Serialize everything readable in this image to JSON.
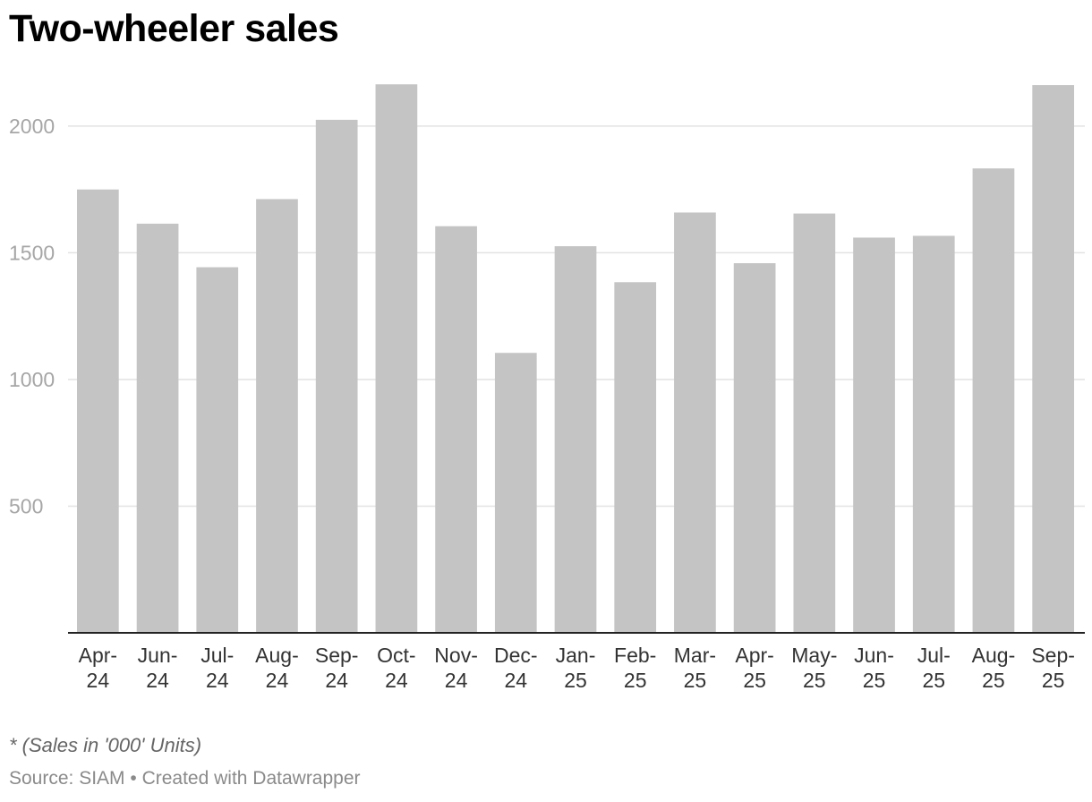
{
  "chart_data": {
    "type": "bar",
    "title": "Two-wheeler sales",
    "categories": [
      [
        "Apr-",
        "24"
      ],
      [
        "Jun-",
        "24"
      ],
      [
        "Jul-",
        "24"
      ],
      [
        "Aug-",
        "24"
      ],
      [
        "Sep-",
        "24"
      ],
      [
        "Oct-",
        "24"
      ],
      [
        "Nov-",
        "24"
      ],
      [
        "Dec-",
        "24"
      ],
      [
        "Jan-",
        "25"
      ],
      [
        "Feb-",
        "25"
      ],
      [
        "Mar-",
        "25"
      ],
      [
        "Apr-",
        "25"
      ],
      [
        "May-",
        "25"
      ],
      [
        "Jun-",
        "25"
      ],
      [
        "Jul-",
        "25"
      ],
      [
        "Aug-",
        "25"
      ],
      [
        "Sep-",
        "25"
      ]
    ],
    "values": [
      1750,
      1615,
      1443,
      1712,
      2025,
      2165,
      1605,
      1105,
      1526,
      1384,
      1659,
      1459,
      1655,
      1560,
      1567,
      1833,
      2162
    ],
    "yticks": [
      500,
      1000,
      1500,
      2000
    ],
    "ylim": [
      0,
      2300
    ],
    "xlabel": "",
    "ylabel": "",
    "bar_color": "#c4c4c4",
    "grid": true
  },
  "footer": {
    "note": "* (Sales in '000' Units)",
    "source": "Source: SIAM • Created with Datawrapper"
  }
}
